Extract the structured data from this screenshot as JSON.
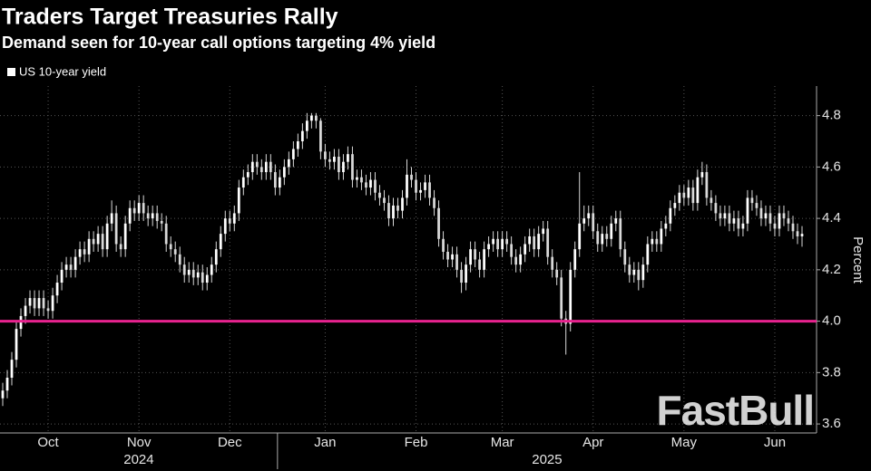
{
  "chart_data": {
    "type": "candlestick",
    "title": "Traders Target Treasuries Rally",
    "subtitle": "Demand seen for 10-year call options targeting 4% yield",
    "series_name": "US 10-year yield",
    "y_axis_label": "Percent",
    "watermark": "FastBull",
    "color": "#d9d9d9",
    "reference_line": {
      "value": 4.0,
      "color": "#e8238f"
    },
    "ylim": [
      3.565,
      4.915
    ],
    "yticks": [
      3.6,
      3.8,
      {
        "value": 4,
        "label": "4.0"
      },
      4.2,
      4.4,
      4.6,
      4.8
    ],
    "grid": true,
    "years": [
      "2024",
      "2025"
    ],
    "categories": [
      null,
      null,
      null,
      null,
      null,
      null,
      null,
      null,
      null,
      null,
      "Oct",
      null,
      null,
      null,
      null,
      null,
      null,
      null,
      null,
      null,
      null,
      null,
      null,
      null,
      null,
      null,
      null,
      null,
      null,
      null,
      "Nov",
      null,
      null,
      null,
      null,
      null,
      null,
      null,
      null,
      null,
      null,
      null,
      null,
      null,
      null,
      null,
      null,
      null,
      null,
      null,
      "Dec",
      null,
      null,
      null,
      null,
      null,
      null,
      null,
      null,
      null,
      null,
      null,
      null,
      null,
      null,
      null,
      null,
      null,
      null,
      null,
      null,
      "Jan",
      null,
      null,
      null,
      null,
      null,
      null,
      null,
      null,
      null,
      null,
      null,
      null,
      null,
      null,
      null,
      null,
      null,
      null,
      null,
      "Feb",
      null,
      null,
      null,
      null,
      null,
      null,
      null,
      null,
      null,
      null,
      null,
      null,
      null,
      null,
      null,
      null,
      null,
      null,
      "Mar",
      null,
      null,
      null,
      null,
      null,
      null,
      null,
      null,
      null,
      null,
      null,
      null,
      null,
      null,
      null,
      null,
      null,
      null,
      null,
      "Apr",
      null,
      null,
      null,
      null,
      null,
      null,
      null,
      null,
      null,
      null,
      null,
      null,
      null,
      null,
      null,
      null,
      null,
      null,
      null,
      "May",
      null,
      null,
      null,
      null,
      null,
      null,
      null,
      null,
      null,
      null,
      null,
      null,
      null,
      null,
      null,
      null,
      null,
      null,
      null,
      "Jun",
      null,
      null,
      null,
      null,
      null,
      null
    ],
    "open": [
      3.7,
      3.73,
      3.78,
      3.85,
      3.97,
      4.02,
      4.06,
      4.09,
      4.05,
      4.09,
      4.05,
      4.04,
      4.1,
      4.15,
      4.2,
      4.22,
      4.2,
      4.25,
      4.28,
      4.26,
      4.32,
      4.3,
      4.34,
      4.28,
      4.38,
      4.42,
      4.3,
      4.28,
      4.38,
      4.44,
      4.42,
      4.46,
      4.42,
      4.4,
      4.42,
      4.39,
      4.38,
      4.3,
      4.28,
      4.26,
      4.22,
      4.18,
      4.2,
      4.17,
      4.19,
      4.15,
      4.18,
      4.22,
      4.28,
      4.34,
      4.4,
      4.38,
      4.42,
      4.52,
      4.56,
      4.58,
      4.62,
      4.6,
      4.58,
      4.62,
      4.58,
      4.52,
      4.56,
      4.6,
      4.63,
      4.67,
      4.7,
      4.74,
      4.78,
      4.8,
      4.78,
      4.66,
      4.63,
      4.62,
      4.64,
      4.58,
      4.62,
      4.65,
      4.55,
      4.56,
      4.54,
      4.52,
      4.55,
      4.5,
      4.48,
      4.46,
      4.4,
      4.45,
      4.43,
      4.48,
      4.57,
      4.55,
      4.5,
      4.51,
      4.54,
      4.48,
      4.44,
      4.32,
      4.27,
      4.24,
      4.26,
      4.2,
      4.15,
      4.22,
      4.28,
      4.24,
      4.2,
      4.28,
      4.3,
      4.32,
      4.28,
      4.32,
      4.3,
      4.25,
      4.22,
      4.26,
      4.3,
      4.33,
      4.28,
      4.34,
      4.36,
      4.25,
      4.2,
      4.17,
      4.01,
      3.99,
      4.2,
      4.28,
      4.38,
      4.4,
      4.42,
      4.35,
      4.3,
      4.34,
      4.32,
      4.38,
      4.4,
      4.28,
      4.22,
      4.18,
      4.2,
      4.16,
      4.22,
      4.3,
      4.32,
      4.3,
      4.36,
      4.38,
      4.44,
      4.46,
      4.5,
      4.48,
      4.52,
      4.46,
      4.56,
      4.58,
      4.48,
      4.46,
      4.42,
      4.4,
      4.42,
      4.38,
      4.4,
      4.36,
      4.38,
      4.48,
      4.46,
      4.44,
      4.4,
      4.42,
      4.38,
      4.36,
      4.42,
      4.4,
      4.38,
      4.35,
      4.33
    ],
    "high": [
      3.76,
      3.81,
      3.88,
      4.0,
      4.05,
      4.09,
      4.12,
      4.12,
      4.12,
      4.12,
      4.08,
      4.13,
      4.18,
      4.23,
      4.25,
      4.25,
      4.28,
      4.31,
      4.31,
      4.35,
      4.35,
      4.37,
      4.37,
      4.41,
      4.47,
      4.45,
      4.33,
      4.41,
      4.47,
      4.47,
      4.49,
      4.49,
      4.45,
      4.45,
      4.45,
      4.42,
      4.41,
      4.33,
      4.31,
      4.29,
      4.25,
      4.23,
      4.23,
      4.22,
      4.22,
      4.21,
      4.25,
      4.31,
      4.37,
      4.43,
      4.43,
      4.45,
      4.55,
      4.59,
      4.61,
      4.65,
      4.65,
      4.63,
      4.65,
      4.65,
      4.61,
      4.59,
      4.63,
      4.66,
      4.7,
      4.73,
      4.77,
      4.81,
      4.81,
      4.81,
      4.79,
      4.69,
      4.66,
      4.67,
      4.67,
      4.65,
      4.68,
      4.68,
      4.59,
      4.59,
      4.57,
      4.58,
      4.58,
      4.53,
      4.51,
      4.49,
      4.48,
      4.48,
      4.51,
      4.63,
      4.6,
      4.58,
      4.54,
      4.57,
      4.57,
      4.51,
      4.47,
      4.35,
      4.3,
      4.29,
      4.29,
      4.23,
      4.25,
      4.31,
      4.31,
      4.27,
      4.31,
      4.33,
      4.35,
      4.35,
      4.35,
      4.35,
      4.33,
      4.28,
      4.29,
      4.33,
      4.36,
      4.36,
      4.37,
      4.39,
      4.39,
      4.28,
      4.23,
      4.2,
      4.04,
      4.23,
      4.31,
      4.58,
      4.45,
      4.45,
      4.45,
      4.38,
      4.37,
      4.37,
      4.41,
      4.43,
      4.43,
      4.31,
      4.25,
      4.23,
      4.23,
      4.25,
      4.33,
      4.35,
      4.35,
      4.39,
      4.41,
      4.47,
      4.49,
      4.53,
      4.53,
      4.55,
      4.55,
      4.59,
      4.62,
      4.61,
      4.51,
      4.49,
      4.45,
      4.45,
      4.45,
      4.43,
      4.43,
      4.41,
      4.51,
      4.51,
      4.49,
      4.47,
      4.45,
      4.45,
      4.41,
      4.45,
      4.45,
      4.43,
      4.41,
      4.38,
      4.37
    ],
    "low": [
      3.67,
      3.7,
      3.75,
      3.82,
      3.94,
      3.99,
      4.03,
      4.02,
      4.02,
      4.02,
      4.01,
      4.01,
      4.07,
      4.12,
      4.17,
      4.17,
      4.17,
      4.22,
      4.23,
      4.23,
      4.27,
      4.27,
      4.25,
      4.25,
      4.35,
      4.27,
      4.25,
      4.25,
      4.35,
      4.39,
      4.39,
      4.39,
      4.37,
      4.37,
      4.36,
      4.35,
      4.27,
      4.25,
      4.23,
      4.19,
      4.15,
      4.15,
      4.14,
      4.14,
      4.12,
      4.12,
      4.15,
      4.19,
      4.25,
      4.31,
      4.35,
      4.35,
      4.39,
      4.49,
      4.53,
      4.55,
      4.57,
      4.55,
      4.55,
      4.55,
      4.49,
      4.49,
      4.53,
      4.57,
      4.6,
      4.64,
      4.67,
      4.71,
      4.75,
      4.75,
      4.63,
      4.6,
      4.59,
      4.59,
      4.55,
      4.55,
      4.59,
      4.52,
      4.52,
      4.51,
      4.49,
      4.49,
      4.47,
      4.45,
      4.43,
      4.37,
      4.37,
      4.4,
      4.4,
      4.45,
      4.52,
      4.47,
      4.47,
      4.48,
      4.45,
      4.41,
      4.29,
      4.24,
      4.21,
      4.21,
      4.17,
      4.11,
      4.12,
      4.19,
      4.21,
      4.17,
      4.17,
      4.25,
      4.27,
      4.25,
      4.25,
      4.27,
      4.22,
      4.19,
      4.19,
      4.23,
      4.27,
      4.25,
      4.25,
      4.31,
      4.22,
      4.17,
      4.14,
      3.98,
      3.87,
      3.96,
      4.17,
      4.25,
      4.35,
      4.37,
      4.32,
      4.27,
      4.27,
      4.29,
      4.29,
      4.35,
      4.25,
      4.19,
      4.15,
      4.15,
      4.12,
      4.13,
      4.19,
      4.27,
      4.27,
      4.27,
      4.33,
      4.35,
      4.41,
      4.43,
      4.45,
      4.45,
      4.43,
      4.43,
      4.53,
      4.45,
      4.43,
      4.39,
      4.37,
      4.37,
      4.35,
      4.35,
      4.33,
      4.33,
      4.35,
      4.43,
      4.41,
      4.37,
      4.37,
      4.35,
      4.33,
      4.33,
      4.37,
      4.35,
      4.32,
      4.3,
      4.29
    ],
    "close": [
      3.73,
      3.78,
      3.85,
      3.97,
      4.02,
      4.06,
      4.09,
      4.05,
      4.09,
      4.05,
      4.04,
      4.1,
      4.15,
      4.2,
      4.22,
      4.2,
      4.25,
      4.28,
      4.26,
      4.32,
      4.3,
      4.34,
      4.28,
      4.38,
      4.42,
      4.3,
      4.28,
      4.38,
      4.44,
      4.42,
      4.46,
      4.42,
      4.4,
      4.42,
      4.39,
      4.38,
      4.3,
      4.28,
      4.26,
      4.22,
      4.18,
      4.2,
      4.17,
      4.19,
      4.15,
      4.18,
      4.22,
      4.28,
      4.34,
      4.4,
      4.38,
      4.42,
      4.52,
      4.56,
      4.58,
      4.62,
      4.6,
      4.58,
      4.62,
      4.58,
      4.52,
      4.56,
      4.6,
      4.63,
      4.67,
      4.7,
      4.74,
      4.78,
      4.8,
      4.78,
      4.66,
      4.63,
      4.62,
      4.64,
      4.58,
      4.62,
      4.65,
      4.55,
      4.56,
      4.54,
      4.52,
      4.55,
      4.5,
      4.48,
      4.46,
      4.4,
      4.45,
      4.43,
      4.48,
      4.57,
      4.55,
      4.5,
      4.51,
      4.54,
      4.48,
      4.44,
      4.32,
      4.27,
      4.24,
      4.26,
      4.2,
      4.15,
      4.22,
      4.28,
      4.24,
      4.2,
      4.28,
      4.3,
      4.32,
      4.28,
      4.32,
      4.3,
      4.25,
      4.22,
      4.26,
      4.3,
      4.33,
      4.28,
      4.34,
      4.36,
      4.25,
      4.2,
      4.17,
      4.01,
      3.99,
      4.2,
      4.28,
      4.38,
      4.4,
      4.42,
      4.35,
      4.3,
      4.34,
      4.32,
      4.38,
      4.4,
      4.28,
      4.22,
      4.18,
      4.2,
      4.16,
      4.22,
      4.3,
      4.32,
      4.3,
      4.36,
      4.38,
      4.44,
      4.46,
      4.5,
      4.48,
      4.52,
      4.46,
      4.56,
      4.58,
      4.48,
      4.46,
      4.42,
      4.4,
      4.42,
      4.38,
      4.4,
      4.36,
      4.38,
      4.48,
      4.46,
      4.44,
      4.4,
      4.42,
      4.38,
      4.36,
      4.42,
      4.4,
      4.38,
      4.35,
      4.33,
      4.34
    ]
  }
}
